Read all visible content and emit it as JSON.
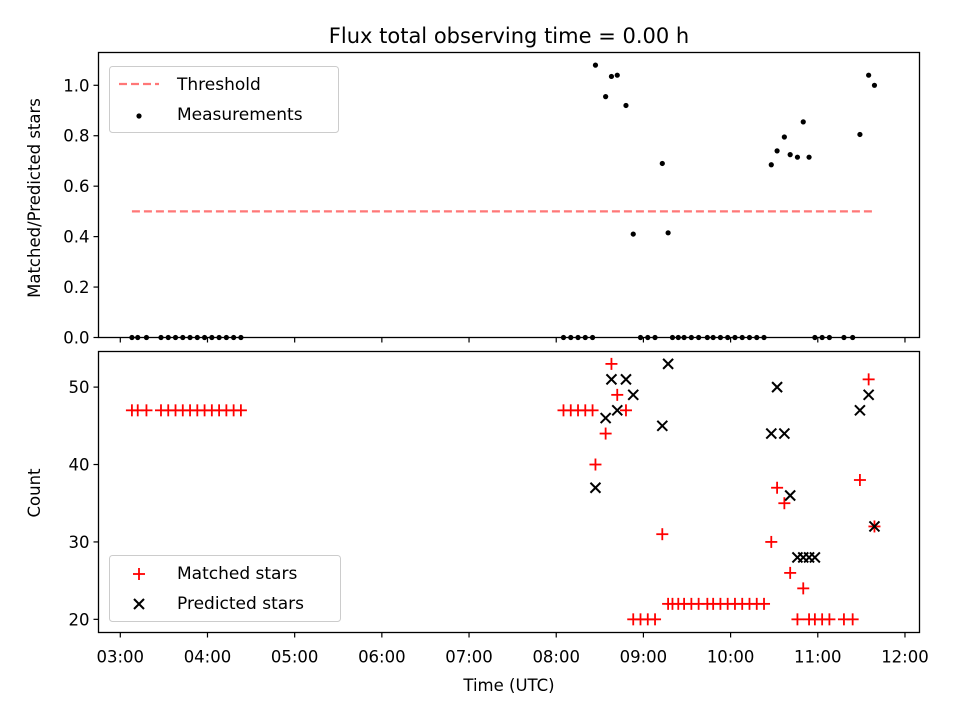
{
  "chart_data": [
    {
      "type": "scatter",
      "title": "Flux total observing time = 0.00 h",
      "xlabel": "",
      "ylabel": "Matched/Predicted stars",
      "ylim": [
        0,
        1.13
      ],
      "yticks": [
        0.0,
        0.2,
        0.4,
        0.6,
        0.8,
        1.0
      ],
      "ytick_labels": [
        "0.0",
        "0.2",
        "0.4",
        "0.6",
        "0.8",
        "1.0"
      ],
      "legend_placement": "top-left",
      "threshold": {
        "name": "Threshold",
        "value": 0.5,
        "x_range": [
          "03:08",
          "11:40"
        ],
        "color": "#ff7777"
      },
      "series": [
        {
          "name": "Measurements",
          "color": "#000000",
          "marker": "dot",
          "x": [
            "03:08",
            "03:12",
            "03:18",
            "03:28",
            "03:33",
            "03:38",
            "03:43",
            "03:48",
            "03:53",
            "03:58",
            "04:03",
            "04:08",
            "04:13",
            "04:18",
            "04:23",
            "08:05",
            "08:10",
            "08:15",
            "08:20",
            "08:25",
            "08:27",
            "08:34",
            "08:38",
            "08:42",
            "08:48",
            "08:53",
            "08:58",
            "09:03",
            "09:08",
            "09:13",
            "09:17",
            "09:20",
            "09:24",
            "09:28",
            "09:33",
            "09:38",
            "09:44",
            "09:48",
            "09:53",
            "09:58",
            "10:03",
            "10:08",
            "10:13",
            "10:18",
            "10:23",
            "10:28",
            "10:32",
            "10:37",
            "10:41",
            "10:46",
            "10:50",
            "10:54",
            "10:58",
            "11:03",
            "11:08",
            "11:18",
            "11:24",
            "11:29",
            "11:35",
            "11:39"
          ],
          "y": [
            0,
            0,
            0,
            0,
            0,
            0,
            0,
            0,
            0,
            0,
            0,
            0,
            0,
            0,
            0,
            0,
            0,
            0,
            0,
            0,
            1.08,
            0.955,
            1.035,
            1.04,
            0.92,
            0.41,
            0,
            0,
            0,
            0.69,
            0.415,
            0,
            0,
            0,
            0,
            0,
            0,
            0,
            0,
            0,
            0,
            0,
            0,
            0,
            0,
            0.685,
            0.74,
            0.795,
            0.725,
            0.715,
            0.855,
            0.715,
            0,
            0,
            0,
            0,
            0,
            0.805,
            1.04,
            1.0
          ]
        }
      ]
    },
    {
      "type": "scatter",
      "title": "",
      "xlabel": "Time (UTC)",
      "ylabel": "Count",
      "xlim": [
        "02:45",
        "12:10"
      ],
      "xticks": [
        "03:00",
        "04:00",
        "05:00",
        "06:00",
        "07:00",
        "08:00",
        "09:00",
        "10:00",
        "11:00",
        "12:00"
      ],
      "ylim": [
        18.3,
        54.6
      ],
      "yticks": [
        20,
        30,
        40,
        50
      ],
      "legend_placement": "bottom-left",
      "series": [
        {
          "name": "Matched stars",
          "color": "#ff0000",
          "marker": "plus",
          "x": [
            "03:08",
            "03:12",
            "03:18",
            "03:28",
            "03:33",
            "03:38",
            "03:43",
            "03:48",
            "03:53",
            "03:58",
            "04:03",
            "04:08",
            "04:13",
            "04:18",
            "04:23",
            "08:05",
            "08:10",
            "08:15",
            "08:20",
            "08:25",
            "08:27",
            "08:34",
            "08:38",
            "08:42",
            "08:48",
            "08:53",
            "08:58",
            "09:03",
            "09:08",
            "09:13",
            "09:17",
            "09:20",
            "09:24",
            "09:28",
            "09:33",
            "09:38",
            "09:44",
            "09:48",
            "09:53",
            "09:58",
            "10:03",
            "10:08",
            "10:13",
            "10:18",
            "10:23",
            "10:28",
            "10:32",
            "10:37",
            "10:41",
            "10:46",
            "10:50",
            "10:54",
            "10:58",
            "11:03",
            "11:08",
            "11:18",
            "11:24",
            "11:29",
            "11:35",
            "11:39"
          ],
          "y": [
            47,
            47,
            47,
            47,
            47,
            47,
            47,
            47,
            47,
            47,
            47,
            47,
            47,
            47,
            47,
            47,
            47,
            47,
            47,
            47,
            40,
            44,
            53,
            49,
            47,
            20,
            20,
            20,
            20,
            31,
            22,
            22,
            22,
            22,
            22,
            22,
            22,
            22,
            22,
            22,
            22,
            22,
            22,
            22,
            22,
            30,
            37,
            35,
            26,
            20,
            24,
            20,
            20,
            20,
            20,
            20,
            20,
            38,
            51,
            32
          ]
        },
        {
          "name": "Predicted stars",
          "color": "#000000",
          "marker": "x",
          "x": [
            "08:27",
            "08:34",
            "08:38",
            "08:42",
            "08:48",
            "08:53",
            "09:13",
            "09:17",
            "10:28",
            "10:32",
            "10:37",
            "10:41",
            "10:46",
            "10:50",
            "10:54",
            "10:58",
            "11:29",
            "11:35",
            "11:39"
          ],
          "y": [
            37,
            46,
            51,
            47,
            51,
            49,
            45,
            53,
            44,
            50,
            44,
            36,
            28,
            28,
            28,
            28,
            47,
            49,
            32
          ]
        }
      ]
    }
  ]
}
